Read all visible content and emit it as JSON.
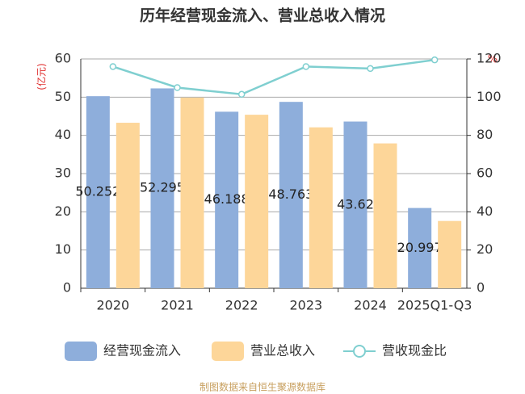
{
  "chart_data": {
    "type": "bar",
    "title": "历年经营现金流入、营业总收入情况",
    "y_label": "(亿元)",
    "y2_label": "%",
    "categories": [
      "2020",
      "2021",
      "2022",
      "2023",
      "2024",
      "2025Q1-Q3"
    ],
    "series": [
      {
        "name": "经营现金流入",
        "color": "#8eaedb",
        "values": [
          50.252,
          52.295,
          46.188,
          48.763,
          43.62,
          20.997
        ]
      },
      {
        "name": "营业总收入",
        "color": "#fdd699",
        "values": [
          43.3,
          49.9,
          45.4,
          42.1,
          37.9,
          17.6
        ]
      },
      {
        "name": "营收现金比",
        "type": "line",
        "axis": "y2",
        "color": "#7fcfd0",
        "values": [
          116,
          105,
          101.5,
          116,
          115,
          119.5
        ]
      }
    ],
    "ylim": [
      0,
      60
    ],
    "yticks": [
      0,
      10,
      20,
      30,
      40,
      50,
      60
    ],
    "y2lim": [
      0,
      120
    ],
    "y2ticks": [
      0,
      20,
      40,
      60,
      80,
      100,
      120
    ],
    "grid": true,
    "legend": "bottom",
    "footer": "制图数据来自恒生聚源数据库"
  }
}
